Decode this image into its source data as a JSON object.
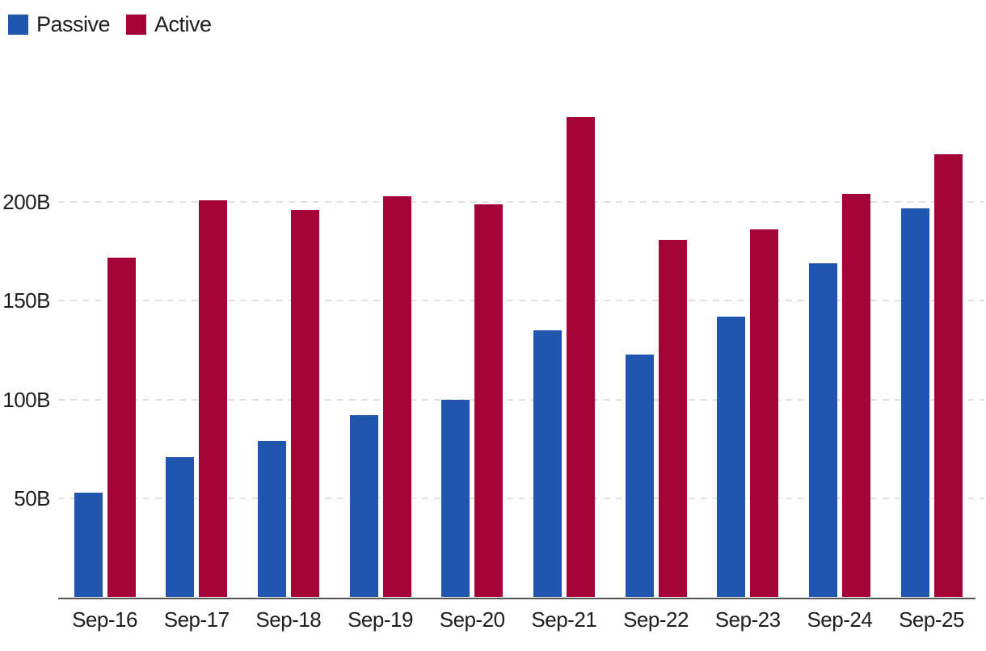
{
  "legend": {
    "items": [
      {
        "label": "Passive",
        "color": "#2156ae"
      },
      {
        "label": "Active",
        "color": "#a50338"
      }
    ]
  },
  "chart_data": {
    "type": "bar",
    "title": "",
    "xlabel": "",
    "ylabel": "",
    "unit": "B",
    "categories": [
      "Sep-16",
      "Sep-17",
      "Sep-18",
      "Sep-19",
      "Sep-20",
      "Sep-21",
      "Sep-22",
      "Sep-23",
      "Sep-24",
      "Sep-25"
    ],
    "series": [
      {
        "name": "Passive",
        "color": "#2156ae",
        "values": [
          53,
          71,
          79,
          92,
          100,
          135,
          123,
          142,
          169,
          197
        ]
      },
      {
        "name": "Active",
        "color": "#a50338",
        "values": [
          172,
          201,
          196,
          203,
          199,
          243,
          181,
          186,
          204,
          224
        ]
      }
    ],
    "ylim": [
      0,
      250
    ],
    "yticks": [
      {
        "value": 50,
        "label": "50B"
      },
      {
        "value": 100,
        "label": "100B"
      },
      {
        "value": 150,
        "label": "150B"
      },
      {
        "value": 200,
        "label": "200B"
      }
    ],
    "grid": "horizontal-dashed",
    "legend_position": "top-left",
    "colors": {
      "axis": "#55565a",
      "gridline": "#e1e1e1",
      "text": "#1e1e1e"
    }
  }
}
